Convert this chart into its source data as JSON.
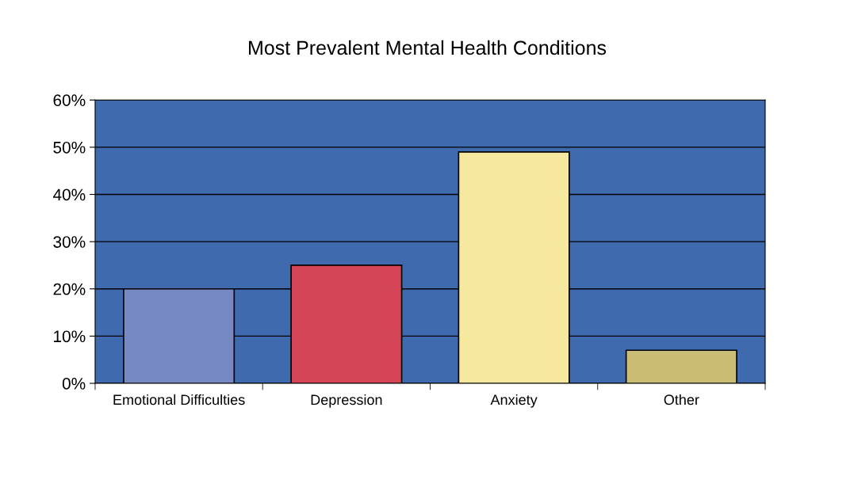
{
  "chart_data": {
    "type": "bar",
    "title": "Most Prevalent Mental Health Conditions",
    "categories": [
      "Emotional Difficulties",
      "Depression",
      "Anxiety",
      "Other"
    ],
    "values": [
      20,
      25,
      49,
      7
    ],
    "colors": [
      "#7789c3",
      "#d44657",
      "#f5e9a0",
      "#c8bd72"
    ],
    "ylim": [
      0,
      60
    ],
    "yticks": [
      {
        "value": 0,
        "label": "0%"
      },
      {
        "value": 10,
        "label": "10%"
      },
      {
        "value": 20,
        "label": "20%"
      },
      {
        "value": 30,
        "label": "30%"
      },
      {
        "value": 40,
        "label": "40%"
      },
      {
        "value": 50,
        "label": "50%"
      },
      {
        "value": 60,
        "label": "60%"
      }
    ],
    "grid": "y",
    "legend": false
  }
}
